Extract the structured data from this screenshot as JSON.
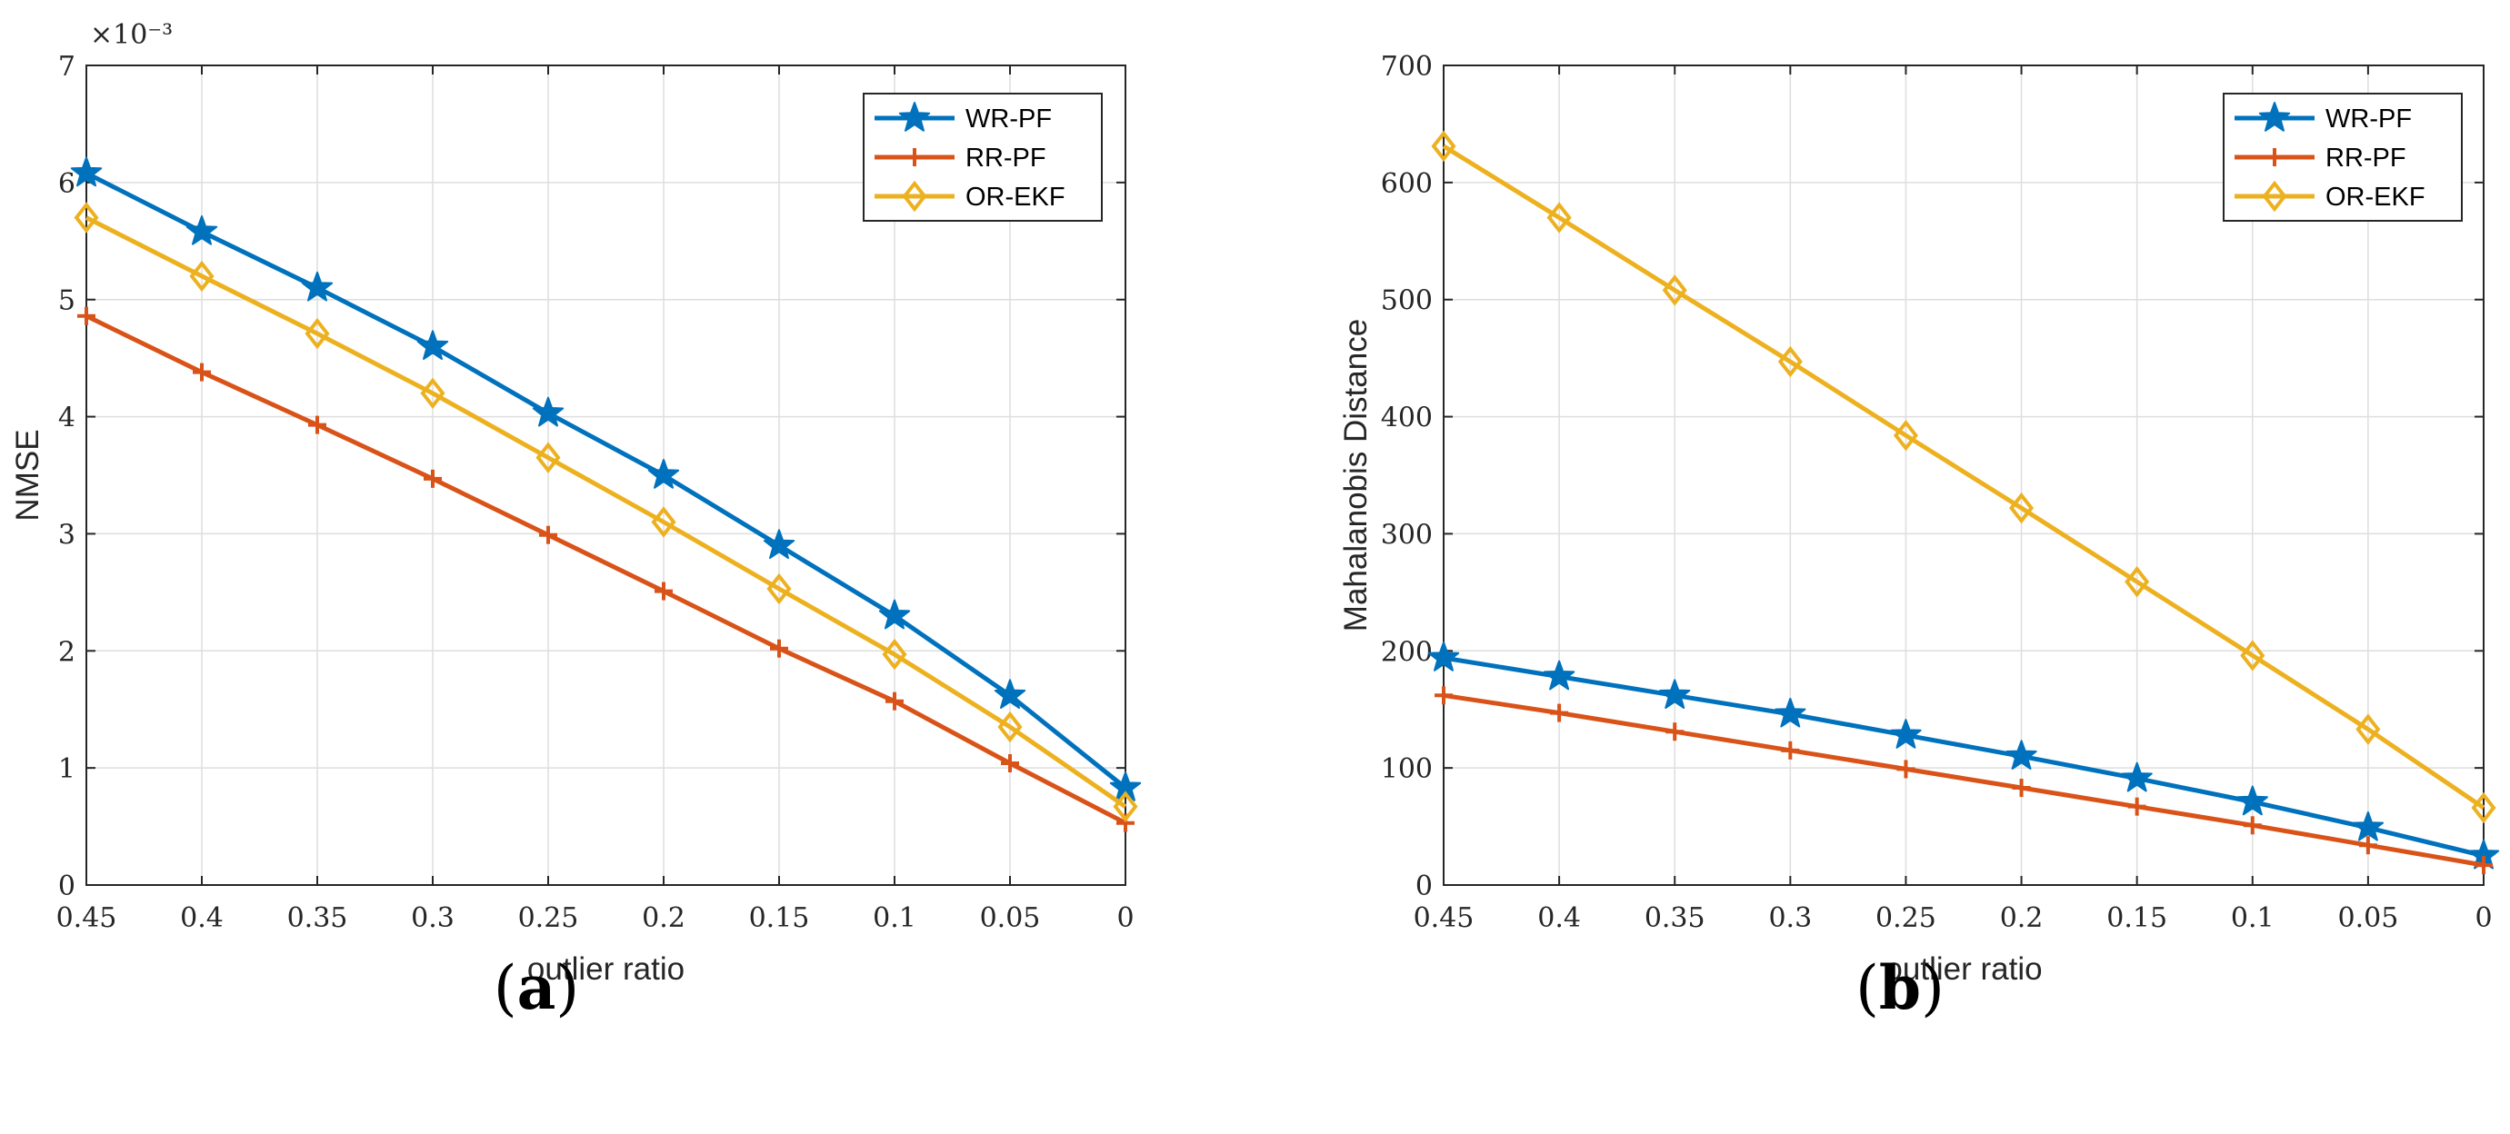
{
  "chart_data": [
    {
      "type": "line",
      "panel": "a",
      "caption": {
        "open": "(",
        "letter": "a",
        "close": ")"
      },
      "categories": [
        "0.45",
        "0.4",
        "0.35",
        "0.3",
        "0.25",
        "0.2",
        "0.15",
        "0.1",
        "0.05",
        "0"
      ],
      "xlabel": "outlier ratio",
      "ylabel": "NMSE",
      "exponent_label": "×10⁻³",
      "ylim": [
        0,
        7
      ],
      "yticks": [
        "0",
        "1",
        "2",
        "3",
        "4",
        "5",
        "6",
        "7"
      ],
      "ytick_values": [
        0,
        1,
        2,
        3,
        4,
        5,
        6,
        7
      ],
      "grid": true,
      "legend_position": "top-right",
      "series": [
        {
          "name": "WR-PF",
          "color": "#0072BD",
          "marker": "star",
          "values": [
            6.08,
            5.58,
            5.1,
            4.6,
            4.03,
            3.5,
            2.9,
            2.3,
            1.62,
            0.83
          ]
        },
        {
          "name": "RR-PF",
          "color": "#D95319",
          "marker": "plus",
          "values": [
            4.86,
            4.38,
            3.93,
            3.47,
            2.99,
            2.51,
            2.02,
            1.57,
            1.04,
            0.53
          ]
        },
        {
          "name": "OR-EKF",
          "color": "#EDB120",
          "marker": "diamond",
          "values": [
            5.7,
            5.2,
            4.71,
            4.2,
            3.65,
            3.1,
            2.53,
            1.97,
            1.35,
            0.67
          ]
        }
      ]
    },
    {
      "type": "line",
      "panel": "b",
      "caption": {
        "open": "(",
        "letter": "b",
        "close": ")"
      },
      "categories": [
        "0.45",
        "0.4",
        "0.35",
        "0.3",
        "0.25",
        "0.2",
        "0.15",
        "0.1",
        "0.05",
        "0"
      ],
      "xlabel": "outlier ratio",
      "ylabel": "Mahalanobis Distance",
      "ylim": [
        0,
        700
      ],
      "yticks": [
        "0",
        "100",
        "200",
        "300",
        "400",
        "500",
        "600",
        "700"
      ],
      "ytick_values": [
        0,
        100,
        200,
        300,
        400,
        500,
        600,
        700
      ],
      "grid": true,
      "legend_position": "top-right",
      "series": [
        {
          "name": "WR-PF",
          "color": "#0072BD",
          "marker": "star",
          "values": [
            194,
            178,
            162,
            146,
            128,
            110,
            91,
            71,
            49,
            25
          ]
        },
        {
          "name": "RR-PF",
          "color": "#D95319",
          "marker": "plus",
          "values": [
            162,
            147,
            131,
            115,
            99,
            83,
            67,
            51,
            34,
            17
          ]
        },
        {
          "name": "OR-EKF",
          "color": "#EDB120",
          "marker": "diamond",
          "values": [
            631,
            570,
            508,
            447,
            384,
            322,
            259,
            196,
            133,
            66
          ]
        }
      ]
    }
  ]
}
